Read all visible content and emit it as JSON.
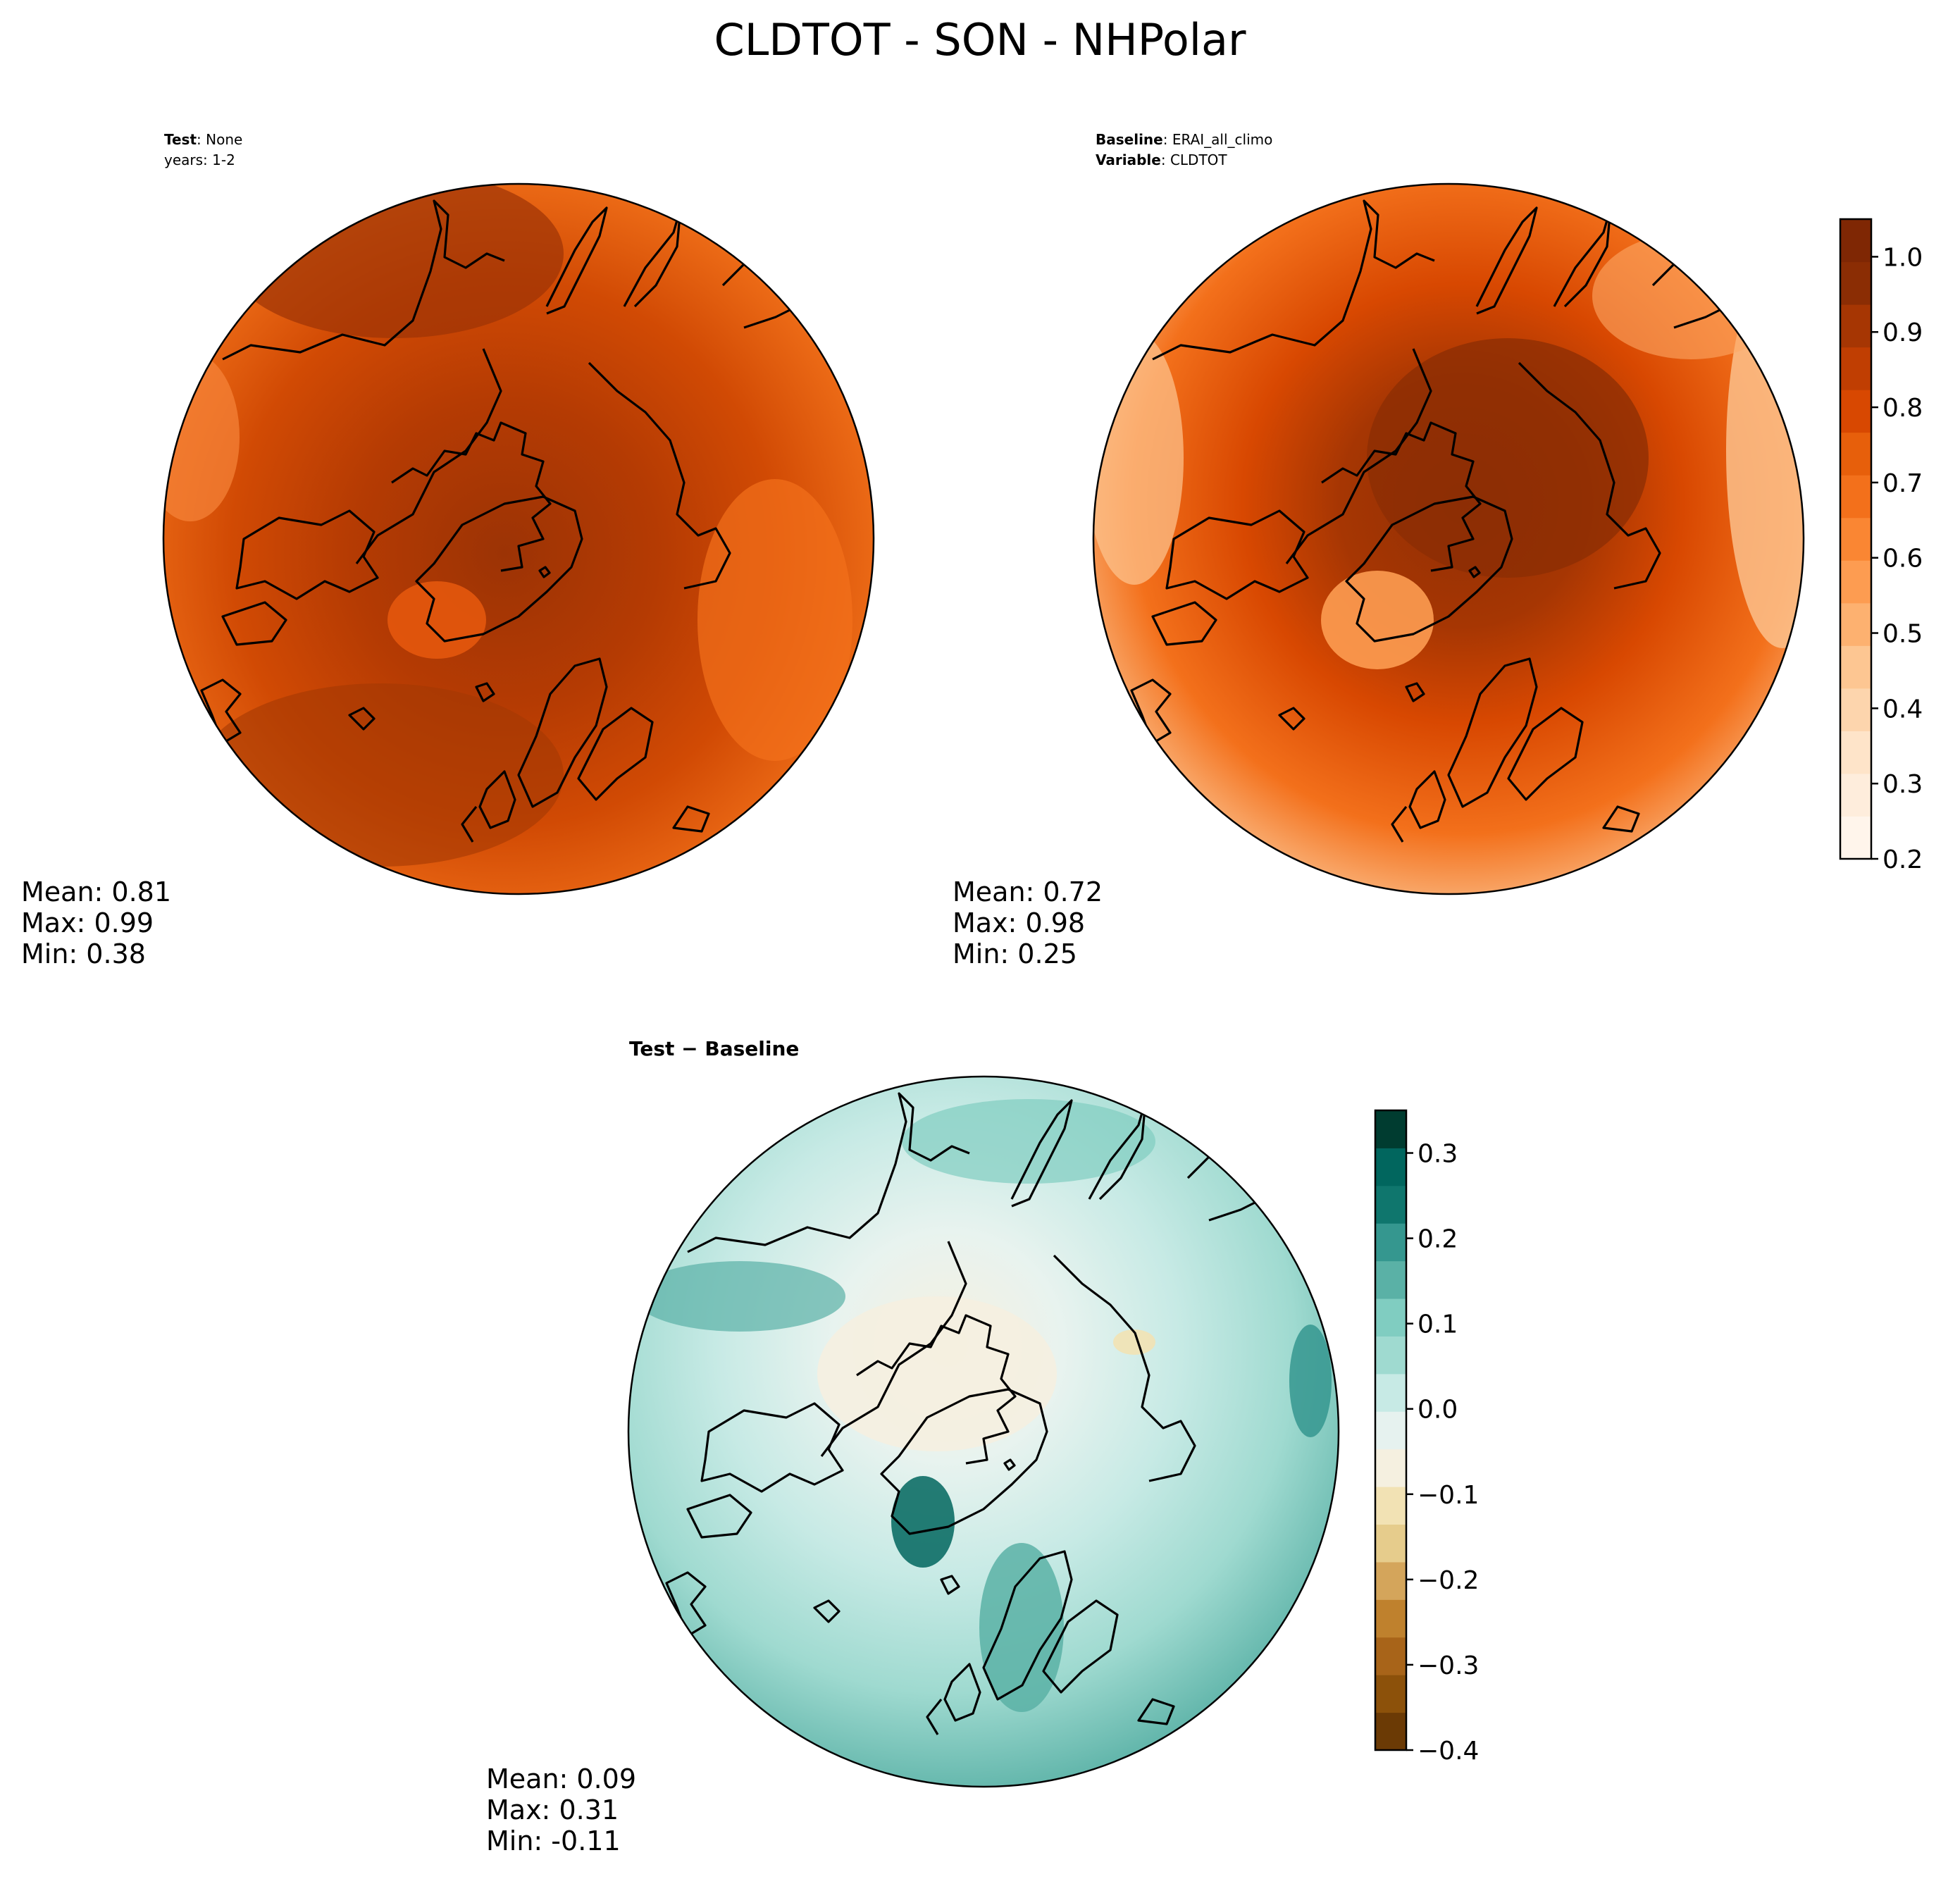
{
  "figure": {
    "title": "CLDTOT - SON - NHPolar"
  },
  "panels": [
    {
      "id": "test",
      "header": [
        {
          "bold": "Test",
          "sep": ": ",
          "value": "None"
        },
        {
          "bold": "",
          "sep": "",
          "value": "years: 1-2"
        }
      ],
      "stats": {
        "mean": "Mean:  0.81",
        "max": "Max:  0.99",
        "min": "Min:  0.38"
      },
      "palette": "orange"
    },
    {
      "id": "baseline",
      "header": [
        {
          "bold": "Baseline",
          "sep": ": ",
          "value": "ERAI_all_climo"
        },
        {
          "bold": "Variable",
          "sep": ": ",
          "value": "CLDTOT"
        }
      ],
      "stats": {
        "mean": "Mean:  0.72",
        "max": "Max:  0.98",
        "min": "Min:  0.25"
      },
      "palette": "orange"
    },
    {
      "id": "diff",
      "header": [
        {
          "bold": "Test − Baseline",
          "sep": "",
          "value": ""
        }
      ],
      "stats": {
        "mean": "Mean:  0.09",
        "max": "Max:  0.31",
        "min": "Min: -0.11"
      },
      "palette": "teal"
    }
  ],
  "colorbars": [
    {
      "id": "orange-colorbar",
      "range": [
        0.2,
        1.05
      ],
      "ticks": [
        "0.2",
        "0.3",
        "0.4",
        "0.5",
        "0.6",
        "0.7",
        "0.8",
        "0.9",
        "1.0"
      ],
      "colors": [
        "#fff5eb",
        "#feeddc",
        "#fee4c9",
        "#fdd5ad",
        "#fdc692",
        "#fdb170",
        "#fd9c51",
        "#fa8633",
        "#f3701b",
        "#e75f0b",
        "#d84801",
        "#c03e02",
        "#a63603",
        "#8b2d04",
        "#7f2704"
      ]
    },
    {
      "id": "teal-colorbar",
      "range": [
        -0.4,
        0.35
      ],
      "ticks": [
        "−0.4",
        "−0.3",
        "−0.2",
        "−0.1",
        "0.0",
        "0.1",
        "0.2",
        "0.3"
      ],
      "colors": [
        "#6b3a05",
        "#8c510a",
        "#a86419",
        "#bf812d",
        "#d4a55b",
        "#e6cc8c",
        "#f2e2b4",
        "#f5f0e0",
        "#e6f2ef",
        "#c7eae5",
        "#9fdad0",
        "#80cdc1",
        "#5ab1a6",
        "#35978f",
        "#0f766d",
        "#01665e",
        "#003c30"
      ]
    }
  ]
}
